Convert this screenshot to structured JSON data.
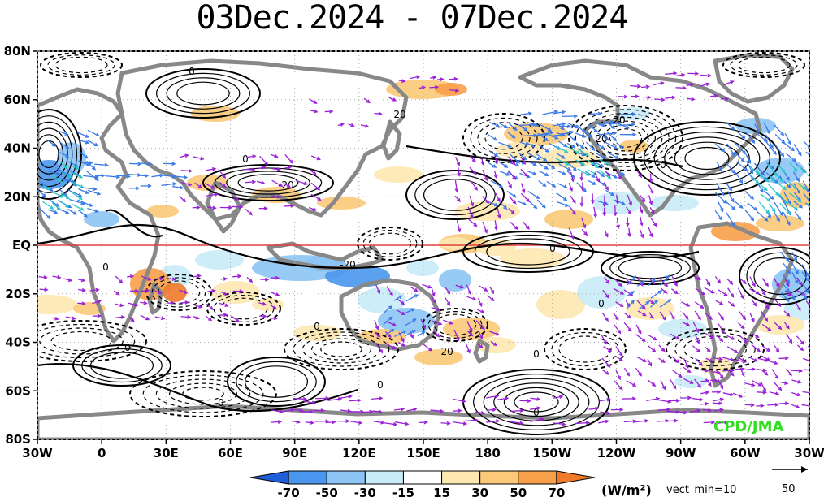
{
  "title": "03Dec.2024 - 07Dec.2024",
  "axes": {
    "lat_labels": [
      "80N",
      "60N",
      "40N",
      "20N",
      "EQ",
      "20S",
      "40S",
      "60S",
      "80S"
    ],
    "lon_labels": [
      "30W",
      "0",
      "30E",
      "60E",
      "90E",
      "120E",
      "150E",
      "180",
      "150W",
      "120W",
      "90W",
      "60W",
      "30W"
    ]
  },
  "colorbar": {
    "labels": [
      "-70",
      "-50",
      "-30",
      "-15",
      "15",
      "30",
      "50",
      "70"
    ],
    "colors": [
      "#1e5fd8",
      "#4a96ee",
      "#8cc4f4",
      "#c8ecf8",
      "#ffffff",
      "#fde8b0",
      "#fbc978",
      "#f7a04a",
      "#f07a2a"
    ],
    "units": "(W/m²)",
    "vect_min_label": "vect_min=10",
    "ref_vector_value": "50"
  },
  "credit": "CPD/JMA",
  "contour_labels": [
    "0",
    "0",
    "0",
    "-20",
    "20",
    "-20",
    "0",
    "0",
    "0",
    "0",
    "0",
    "0",
    "-20",
    "0",
    "20",
    "0",
    "20",
    "0"
  ],
  "colors": {
    "land": "#888888",
    "equator": "#e04040",
    "vector_primary": "#9a20d8",
    "vector_strong": "#3a7ae8",
    "vector_strongest": "#2ac8c8"
  }
}
